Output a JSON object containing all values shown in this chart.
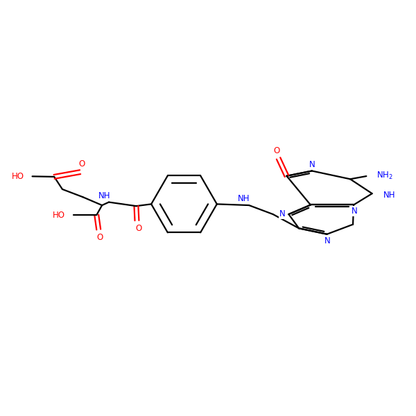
{
  "bg_color": "#ffffff",
  "bond_color": "#000000",
  "n_color": "#0000ff",
  "o_color": "#ff0000",
  "figsize": [
    6.0,
    6.0
  ],
  "dpi": 100,
  "lw": 1.6,
  "fs": 8.5,
  "xlim": [
    0,
    14
  ],
  "ylim": [
    3,
    11
  ]
}
